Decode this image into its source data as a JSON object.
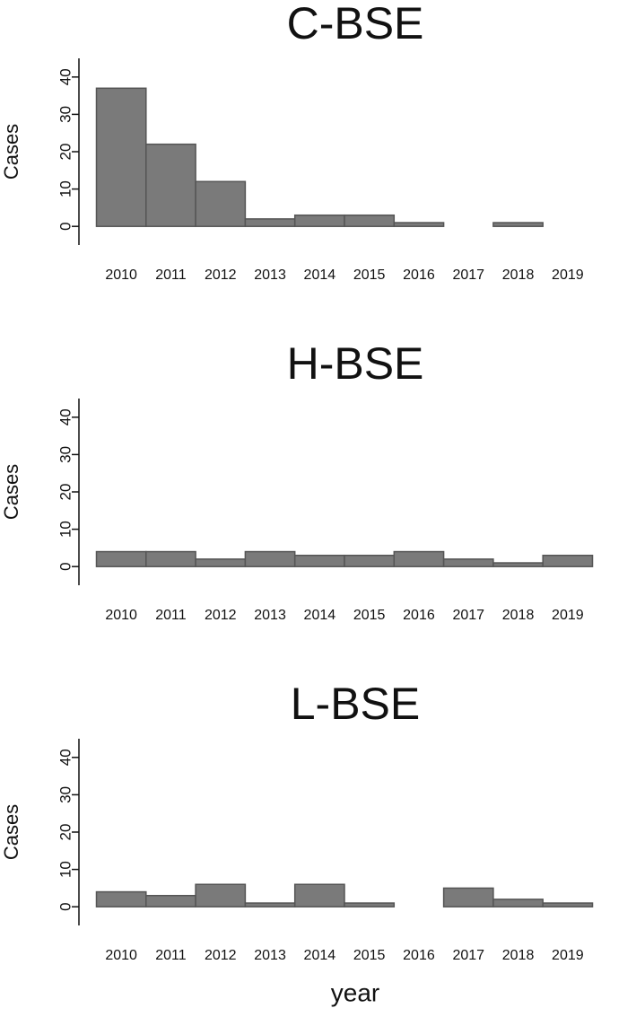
{
  "chart_data": [
    {
      "type": "bar",
      "title": "C-BSE",
      "ylabel": "Cases",
      "categories": [
        "2010",
        "2011",
        "2012",
        "2013",
        "2014",
        "2015",
        "2016",
        "2017",
        "2018",
        "2019"
      ],
      "values": [
        37,
        22,
        12,
        2,
        3,
        3,
        1,
        0,
        1,
        0
      ],
      "color": "#7a7a7a",
      "ylim": [
        -5,
        45
      ],
      "yticks": [
        0,
        10,
        20,
        30,
        40
      ]
    },
    {
      "type": "bar",
      "title": "H-BSE",
      "ylabel": "Cases",
      "categories": [
        "2010",
        "2011",
        "2012",
        "2013",
        "2014",
        "2015",
        "2016",
        "2017",
        "2018",
        "2019"
      ],
      "values": [
        4,
        4,
        2,
        4,
        3,
        3,
        4,
        2,
        1,
        3
      ],
      "color": "#7a7a7a",
      "ylim": [
        -5,
        45
      ],
      "yticks": [
        0,
        10,
        20,
        30,
        40
      ]
    },
    {
      "type": "bar",
      "title": "L-BSE",
      "ylabel": "Cases",
      "xlabel": "year",
      "categories": [
        "2010",
        "2011",
        "2012",
        "2013",
        "2014",
        "2015",
        "2016",
        "2017",
        "2018",
        "2019"
      ],
      "values": [
        4,
        3,
        6,
        1,
        6,
        1,
        0,
        5,
        2,
        1
      ],
      "color": "#7a7a7a",
      "ylim": [
        -5,
        45
      ],
      "yticks": [
        0,
        10,
        20,
        30,
        40
      ]
    }
  ]
}
